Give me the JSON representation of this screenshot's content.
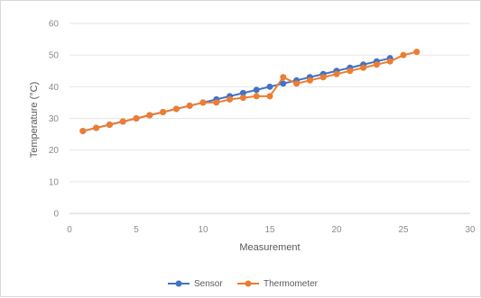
{
  "chart_data": {
    "type": "line",
    "title": "",
    "xlabel": "Measurement",
    "ylabel": "Temperature (°C)",
    "xlim": [
      0,
      30
    ],
    "ylim": [
      0,
      60
    ],
    "x_ticks": [
      0,
      5,
      10,
      15,
      20,
      25,
      30
    ],
    "y_ticks": [
      0,
      10,
      20,
      30,
      40,
      50,
      60
    ],
    "grid": "horizontal",
    "legend_position": "bottom",
    "series": [
      {
        "name": "Sensor",
        "color": "#4472c4",
        "marker": "circle",
        "points": [
          [
            1,
            26
          ],
          [
            2,
            27
          ],
          [
            3,
            28
          ],
          [
            4,
            29
          ],
          [
            5,
            30
          ],
          [
            6,
            31
          ],
          [
            7,
            32
          ],
          [
            8,
            33
          ],
          [
            9,
            34
          ],
          [
            10,
            35
          ],
          [
            11,
            36
          ],
          [
            12,
            37
          ],
          [
            13,
            38
          ],
          [
            14,
            39
          ],
          [
            15,
            40
          ],
          [
            16,
            41
          ],
          [
            17,
            42
          ],
          [
            18,
            43
          ],
          [
            19,
            44
          ],
          [
            20,
            45
          ],
          [
            21,
            46
          ],
          [
            22,
            47
          ],
          [
            23,
            48
          ],
          [
            24,
            49
          ]
        ]
      },
      {
        "name": "Thermometer",
        "color": "#ed7d31",
        "marker": "circle",
        "points": [
          [
            1,
            26
          ],
          [
            2,
            27
          ],
          [
            3,
            28
          ],
          [
            4,
            29
          ],
          [
            5,
            30
          ],
          [
            6,
            31
          ],
          [
            7,
            32
          ],
          [
            8,
            33
          ],
          [
            9,
            34
          ],
          [
            10,
            35
          ],
          [
            11,
            35
          ],
          [
            12,
            36
          ],
          [
            13,
            36.5
          ],
          [
            14,
            37
          ],
          [
            15,
            37
          ],
          [
            16,
            43
          ],
          [
            17,
            41
          ],
          [
            18,
            42
          ],
          [
            19,
            43
          ],
          [
            20,
            44
          ],
          [
            21,
            45
          ],
          [
            22,
            46
          ],
          [
            23,
            47
          ],
          [
            24,
            48
          ],
          [
            25,
            50
          ],
          [
            26,
            51
          ]
        ]
      }
    ]
  }
}
